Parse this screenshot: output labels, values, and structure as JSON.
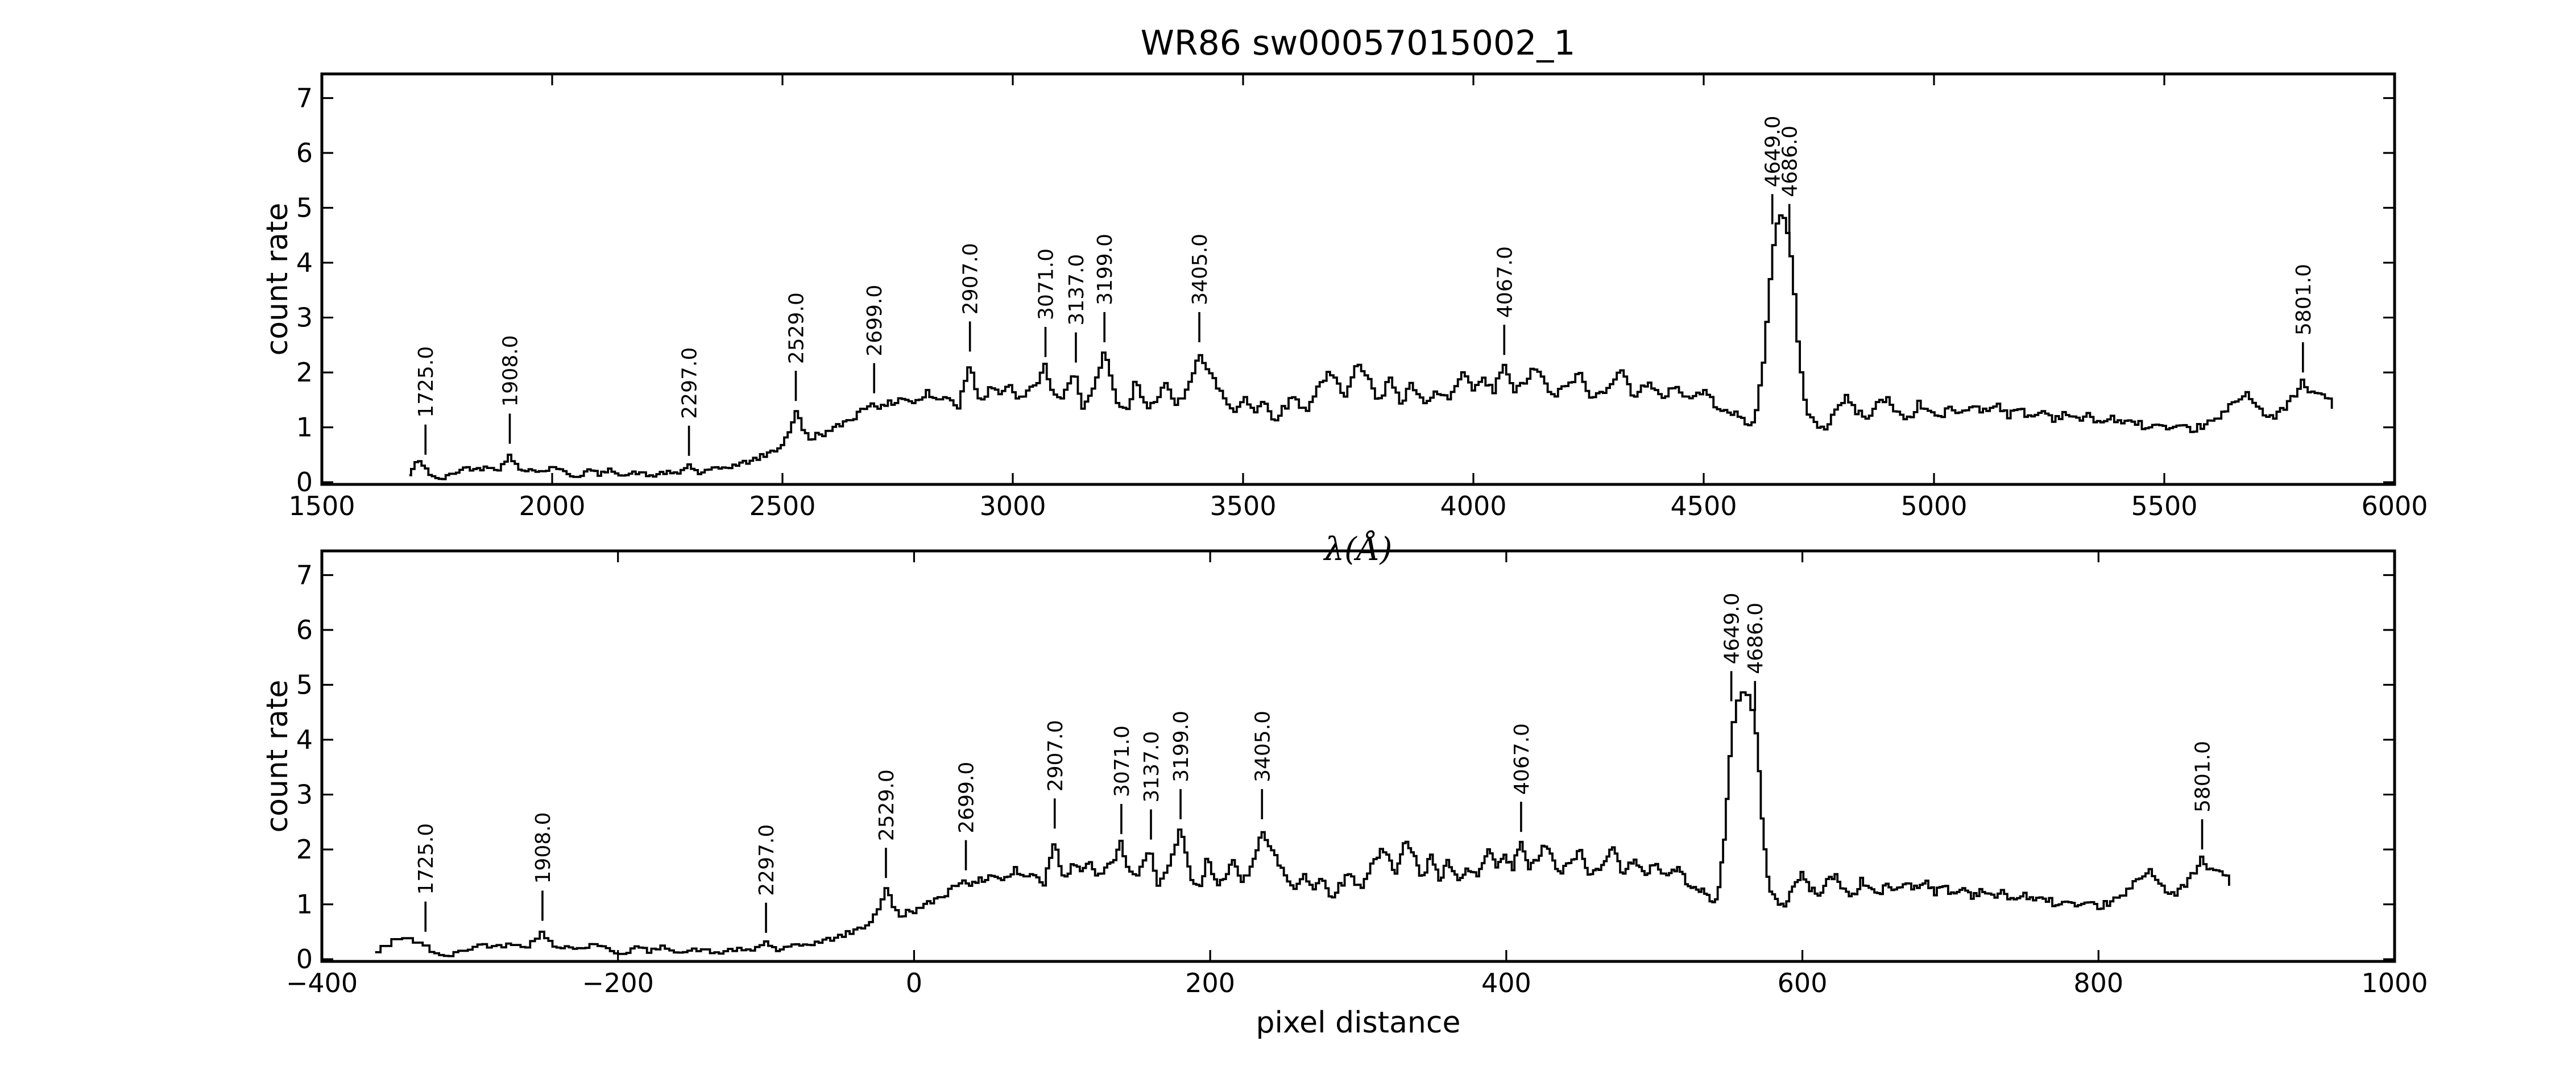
{
  "colors": {
    "foreground": "#000000",
    "background": "#ffffff"
  },
  "chart_data": {
    "type": "line",
    "title": "WR86  sw00057015002_1",
    "grid": false,
    "legend": null,
    "ylim": [
      -0.04,
      7.44
    ],
    "yticks": [
      0,
      1,
      2,
      3,
      4,
      5,
      6,
      7
    ],
    "ytick_labels": [
      "0",
      "1",
      "2",
      "3",
      "4",
      "5",
      "6",
      "7"
    ],
    "panels": [
      {
        "x_mode": "wavelength",
        "xlabel": "λ(Å)",
        "ylabel": "count rate",
        "xlim": [
          1500,
          6000
        ],
        "xticks": [
          1500,
          2000,
          2500,
          3000,
          3500,
          4000,
          4500,
          5000,
          5500,
          6000
        ],
        "xtick_labels": [
          "1500",
          "2000",
          "2500",
          "3000",
          "3500",
          "4000",
          "4500",
          "5000",
          "5500",
          "6000"
        ]
      },
      {
        "x_mode": "pixel",
        "xlabel": "pixel distance",
        "ylabel": "count rate",
        "xlim": [
          -400,
          1000
        ],
        "xticks": [
          -400,
          -200,
          0,
          200,
          400,
          600,
          800,
          1000
        ],
        "xtick_labels": [
          "−400",
          "−200",
          "0",
          "200",
          "400",
          "600",
          "800",
          "1000"
        ]
      }
    ],
    "annotations": [
      {
        "label": "1725.0",
        "wavelength": 1725,
        "attach": 0.5
      },
      {
        "label": "1908.0",
        "wavelength": 1908,
        "attach": 0.7
      },
      {
        "label": "2297.0",
        "wavelength": 2297,
        "attach": 0.48
      },
      {
        "label": "2529.0",
        "wavelength": 2529,
        "attach": 1.48
      },
      {
        "label": "2699.0",
        "wavelength": 2699,
        "attach": 1.62
      },
      {
        "label": "2907.0",
        "wavelength": 2907,
        "attach": 2.38
      },
      {
        "label": "3071.0",
        "wavelength": 3071,
        "attach": 2.28
      },
      {
        "label": "3137.0",
        "wavelength": 3137,
        "attach": 2.18
      },
      {
        "label": "3199.0",
        "wavelength": 3199,
        "attach": 2.55
      },
      {
        "label": "3405.0",
        "wavelength": 3405,
        "attach": 2.55
      },
      {
        "label": "4067.0",
        "wavelength": 4067,
        "attach": 2.32
      },
      {
        "label": "4649.0",
        "wavelength": 4649,
        "attach": 4.7
      },
      {
        "label": "4686.0",
        "wavelength": 4686,
        "attach": 4.52
      },
      {
        "label": "5801.0",
        "wavelength": 5801,
        "attach": 2.0
      }
    ],
    "dispersion_map": [
      [
        1690,
        -364
      ],
      [
        1725,
        -330
      ],
      [
        1908,
        -251
      ],
      [
        2100,
        -180
      ],
      [
        2297,
        -100
      ],
      [
        2529,
        -19
      ],
      [
        2699,
        35
      ],
      [
        2907,
        95
      ],
      [
        3071,
        140
      ],
      [
        3137,
        160
      ],
      [
        3199,
        180
      ],
      [
        3405,
        235
      ],
      [
        3700,
        320
      ],
      [
        4067,
        410
      ],
      [
        4649,
        552
      ],
      [
        4686,
        568
      ],
      [
        5300,
        725
      ],
      [
        5801,
        870
      ],
      [
        5870,
        890
      ]
    ],
    "sample_step_angstrom": 7.5,
    "noise_seed": 42,
    "spectrum_anchors": [
      [
        1690,
        0.12
      ],
      [
        1702,
        0.32
      ],
      [
        1712,
        0.37
      ],
      [
        1722,
        0.32
      ],
      [
        1735,
        0.15
      ],
      [
        1750,
        0.05
      ],
      [
        1768,
        0.08
      ],
      [
        1790,
        0.18
      ],
      [
        1815,
        0.27
      ],
      [
        1840,
        0.23
      ],
      [
        1862,
        0.3
      ],
      [
        1885,
        0.24
      ],
      [
        1901,
        0.38
      ],
      [
        1908,
        0.56
      ],
      [
        1918,
        0.35
      ],
      [
        1935,
        0.18
      ],
      [
        1958,
        0.26
      ],
      [
        1980,
        0.18
      ],
      [
        2005,
        0.3
      ],
      [
        2030,
        0.16
      ],
      [
        2055,
        0.1
      ],
      [
        2080,
        0.22
      ],
      [
        2105,
        0.14
      ],
      [
        2130,
        0.23
      ],
      [
        2158,
        0.12
      ],
      [
        2185,
        0.18
      ],
      [
        2215,
        0.11
      ],
      [
        2245,
        0.18
      ],
      [
        2272,
        0.14
      ],
      [
        2297,
        0.32
      ],
      [
        2318,
        0.16
      ],
      [
        2345,
        0.22
      ],
      [
        2375,
        0.27
      ],
      [
        2405,
        0.32
      ],
      [
        2435,
        0.4
      ],
      [
        2465,
        0.5
      ],
      [
        2492,
        0.62
      ],
      [
        2512,
        0.85
      ],
      [
        2529,
        1.3
      ],
      [
        2543,
        1.0
      ],
      [
        2558,
        0.78
      ],
      [
        2580,
        0.88
      ],
      [
        2605,
        0.92
      ],
      [
        2632,
        1.08
      ],
      [
        2660,
        1.22
      ],
      [
        2685,
        1.4
      ],
      [
        2699,
        1.48
      ],
      [
        2715,
        1.33
      ],
      [
        2738,
        1.45
      ],
      [
        2762,
        1.55
      ],
      [
        2788,
        1.44
      ],
      [
        2815,
        1.62
      ],
      [
        2840,
        1.48
      ],
      [
        2862,
        1.58
      ],
      [
        2882,
        1.35
      ],
      [
        2902,
        2.05
      ],
      [
        2907,
        2.22
      ],
      [
        2916,
        1.8
      ],
      [
        2932,
        1.5
      ],
      [
        2955,
        1.78
      ],
      [
        2975,
        1.6
      ],
      [
        2995,
        1.72
      ],
      [
        3018,
        1.5
      ],
      [
        3040,
        1.68
      ],
      [
        3058,
        1.9
      ],
      [
        3071,
        2.12
      ],
      [
        3085,
        1.7
      ],
      [
        3102,
        1.45
      ],
      [
        3120,
        1.7
      ],
      [
        3137,
        2.02
      ],
      [
        3152,
        1.38
      ],
      [
        3172,
        1.6
      ],
      [
        3188,
        1.95
      ],
      [
        3199,
        2.4
      ],
      [
        3212,
        1.9
      ],
      [
        3228,
        1.45
      ],
      [
        3248,
        1.25
      ],
      [
        3268,
        1.85
      ],
      [
        3290,
        1.35
      ],
      [
        3312,
        1.55
      ],
      [
        3332,
        1.78
      ],
      [
        3352,
        1.38
      ],
      [
        3372,
        1.6
      ],
      [
        3390,
        2.0
      ],
      [
        3405,
        2.38
      ],
      [
        3420,
        2.05
      ],
      [
        3442,
        1.8
      ],
      [
        3465,
        1.45
      ],
      [
        3482,
        1.28
      ],
      [
        3505,
        1.58
      ],
      [
        3525,
        1.28
      ],
      [
        3545,
        1.48
      ],
      [
        3568,
        1.15
      ],
      [
        3590,
        1.35
      ],
      [
        3612,
        1.58
      ],
      [
        3635,
        1.28
      ],
      [
        3658,
        1.65
      ],
      [
        3680,
        1.95
      ],
      [
        3700,
        1.88
      ],
      [
        3722,
        1.5
      ],
      [
        3748,
        2.28
      ],
      [
        3772,
        1.92
      ],
      [
        3795,
        1.4
      ],
      [
        3818,
        1.98
      ],
      [
        3842,
        1.42
      ],
      [
        3868,
        1.78
      ],
      [
        3895,
        1.38
      ],
      [
        3922,
        1.65
      ],
      [
        3948,
        1.5
      ],
      [
        3975,
        1.95
      ],
      [
        4000,
        1.7
      ],
      [
        4022,
        1.85
      ],
      [
        4045,
        1.65
      ],
      [
        4067,
        2.18
      ],
      [
        4088,
        1.6
      ],
      [
        4112,
        1.85
      ],
      [
        4140,
        2.1
      ],
      [
        4168,
        1.55
      ],
      [
        4198,
        1.7
      ],
      [
        4228,
        2.0
      ],
      [
        4258,
        1.5
      ],
      [
        4288,
        1.72
      ],
      [
        4318,
        2.05
      ],
      [
        4348,
        1.6
      ],
      [
        4378,
        1.8
      ],
      [
        4408,
        1.52
      ],
      [
        4438,
        1.78
      ],
      [
        4468,
        1.5
      ],
      [
        4498,
        1.68
      ],
      [
        4525,
        1.42
      ],
      [
        4552,
        1.32
      ],
      [
        4578,
        1.18
      ],
      [
        4600,
        1.02
      ],
      [
        4616,
        1.3
      ],
      [
        4630,
        2.2
      ],
      [
        4643,
        3.5
      ],
      [
        4654,
        4.45
      ],
      [
        4664,
        4.95
      ],
      [
        4674,
        4.82
      ],
      [
        4684,
        4.5
      ],
      [
        4694,
        3.8
      ],
      [
        4704,
        2.65
      ],
      [
        4714,
        1.8
      ],
      [
        4726,
        1.3
      ],
      [
        4742,
        1.08
      ],
      [
        4762,
        0.95
      ],
      [
        4785,
        1.28
      ],
      [
        4808,
        1.55
      ],
      [
        4830,
        1.32
      ],
      [
        4852,
        1.15
      ],
      [
        4875,
        1.42
      ],
      [
        4898,
        1.52
      ],
      [
        4920,
        1.28
      ],
      [
        4945,
        1.15
      ],
      [
        4968,
        1.42
      ],
      [
        4990,
        1.3
      ],
      [
        5012,
        1.18
      ],
      [
        5038,
        1.35
      ],
      [
        5062,
        1.25
      ],
      [
        5088,
        1.42
      ],
      [
        5112,
        1.28
      ],
      [
        5138,
        1.45
      ],
      [
        5162,
        1.22
      ],
      [
        5188,
        1.32
      ],
      [
        5212,
        1.18
      ],
      [
        5238,
        1.3
      ],
      [
        5262,
        1.15
      ],
      [
        5288,
        1.28
      ],
      [
        5312,
        1.12
      ],
      [
        5338,
        1.22
      ],
      [
        5362,
        1.08
      ],
      [
        5388,
        1.18
      ],
      [
        5412,
        1.05
      ],
      [
        5438,
        1.12
      ],
      [
        5462,
        0.98
      ],
      [
        5488,
        1.05
      ],
      [
        5512,
        0.92
      ],
      [
        5538,
        1.0
      ],
      [
        5562,
        0.95
      ],
      [
        5588,
        1.05
      ],
      [
        5612,
        1.12
      ],
      [
        5638,
        1.32
      ],
      [
        5662,
        1.55
      ],
      [
        5684,
        1.62
      ],
      [
        5702,
        1.42
      ],
      [
        5722,
        1.18
      ],
      [
        5738,
        1.15
      ],
      [
        5758,
        1.35
      ],
      [
        5778,
        1.52
      ],
      [
        5792,
        1.68
      ],
      [
        5801,
        1.82
      ],
      [
        5812,
        1.68
      ],
      [
        5825,
        1.58
      ],
      [
        5840,
        1.66
      ],
      [
        5855,
        1.5
      ],
      [
        5870,
        1.36
      ]
    ]
  }
}
